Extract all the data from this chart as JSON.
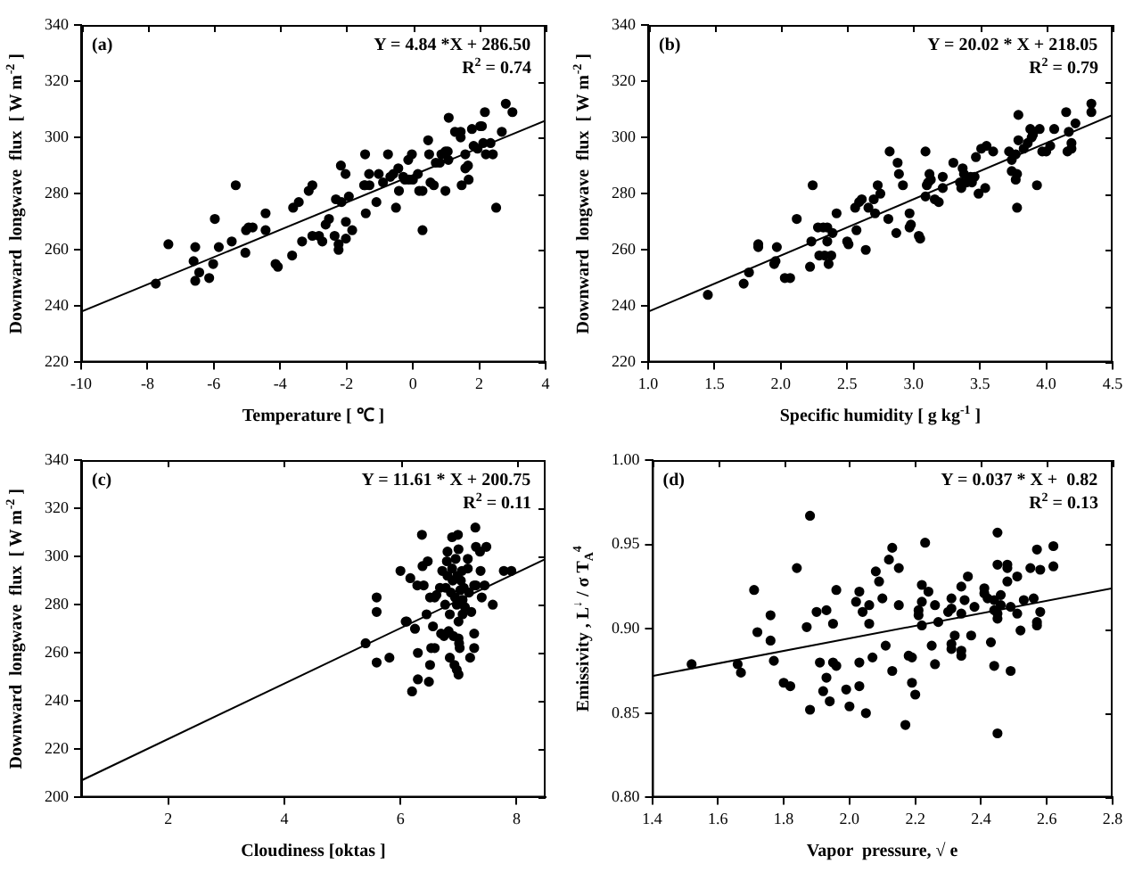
{
  "chart_data": [
    {
      "type": "scatter",
      "xlabel": "Temperature [ ℃ ]",
      "ylabel": "Downward  longwave  flux  [ W m$^{-2}$ ]",
      "xlim": [
        -10,
        4
      ],
      "xticks": [
        -10,
        -8,
        -6,
        -4,
        -2,
        0,
        2,
        4
      ],
      "ylim": [
        220,
        340
      ],
      "yticks": [
        220,
        240,
        260,
        280,
        300,
        320,
        340
      ],
      "marker": "circle",
      "annotations": [
        "(a)",
        "Y = 4.84 *X + 286.50",
        "R$^{2}$ = 0.74"
      ],
      "series": [
        {
          "color": "#000000",
          "x": [
            -7.75,
            -7.37,
            -6.61,
            -6.56,
            -6.56,
            -6.44,
            -6.14,
            -6.02,
            -5.97,
            -5.85,
            -5.46,
            -5.34,
            -5.05,
            -5.03,
            -4.95,
            -4.83,
            -4.44,
            -4.44,
            -4.14,
            -4.07,
            -3.64,
            -3.61,
            -3.44,
            -3.34,
            -3.14,
            -3.03,
            -3.03,
            -2.83,
            -2.73,
            -2.63,
            -2.53,
            -2.36,
            -2.32,
            -2.24,
            -2.24,
            -2.17,
            -2.15,
            -2.03,
            -2.02,
            -2.02,
            -1.93,
            -1.83,
            -1.44,
            -1.44,
            -1.42,
            -1.47,
            -1.32,
            -1.31,
            -1.1,
            -1.03,
            -0.9,
            -0.75,
            -0.68,
            -0.59,
            -0.51,
            -0.44,
            -0.42,
            -0.29,
            -0.24,
            -0.14,
            -0.12,
            -0.03,
            0,
            0.15,
            0.19,
            0.29,
            0.29,
            0.46,
            0.49,
            0.53,
            0.63,
            0.69,
            0.81,
            0.86,
            0.98,
            0.98,
            1.05,
            1.07,
            1.08,
            1.27,
            1.44,
            1.44,
            1.47,
            1.58,
            1.58,
            1.66,
            1.68,
            1.78,
            1.83,
            1.95,
            2.03,
            2.08,
            2.12,
            2.17,
            2.2,
            2.34,
            2.41,
            2.51,
            2.68,
            2.8,
            3.0
          ],
          "values": [
            248,
            262,
            256,
            261,
            249,
            252,
            250,
            255,
            271,
            261,
            263,
            283,
            259,
            267,
            268,
            268,
            273,
            267,
            255,
            254,
            258,
            275,
            277,
            263,
            281,
            283,
            265,
            265,
            263,
            269,
            271,
            265,
            278,
            262,
            260,
            290,
            277,
            287,
            270,
            264,
            279,
            267,
            294,
            283,
            273,
            283,
            287,
            283,
            277,
            287,
            284,
            294,
            286,
            287,
            275,
            289,
            281,
            286,
            285,
            292,
            285,
            294,
            285,
            287,
            281,
            281,
            267,
            299,
            294,
            284,
            283,
            291,
            291,
            294,
            281,
            295,
            295,
            292,
            307,
            302,
            300,
            302,
            283,
            294,
            289,
            290,
            285,
            303,
            297,
            296,
            304,
            304,
            298,
            309,
            294,
            298,
            294,
            275,
            302,
            312,
            309
          ]
        },
        {
          "type": "line",
          "color": "#000000",
          "x": [
            -10,
            4
          ],
          "values": [
            238,
            306
          ],
          "marker": "none"
        }
      ]
    },
    {
      "type": "scatter",
      "xlabel": "Specific humidity [ g kg$^{-1}$ ]",
      "ylabel": "Downward  longwave  flux  [ W m$^{-2}$ ]",
      "xlim": [
        1.0,
        4.5
      ],
      "xticks": [
        {
          "value": 1,
          "label": "1.0"
        },
        1.5,
        {
          "value": 2,
          "label": "2.0"
        },
        2.5,
        {
          "value": 3,
          "label": "3.0"
        },
        3.5,
        {
          "value": 4,
          "label": "4.0"
        },
        4.5
      ],
      "ylim": [
        220,
        340
      ],
      "yticks": [
        220,
        240,
        260,
        280,
        300,
        320,
        340
      ],
      "marker": "circle",
      "annotations": [
        "(b)",
        "Y = 20.02 * X + 218.05",
        "R$^{2}$ = 0.79"
      ],
      "series": [
        {
          "color": "#000000",
          "x": [
            1.45,
            1.72,
            1.76,
            1.83,
            1.83,
            1.95,
            1.96,
            1.97,
            2.03,
            2.07,
            2.12,
            2.22,
            2.23,
            2.24,
            2.28,
            2.29,
            2.32,
            2.33,
            2.35,
            2.35,
            2.36,
            2.38,
            2.39,
            2.42,
            2.5,
            2.51,
            2.56,
            2.57,
            2.59,
            2.61,
            2.64,
            2.66,
            2.7,
            2.71,
            2.73,
            2.75,
            2.82,
            2.81,
            2.87,
            2.88,
            2.89,
            2.92,
            2.97,
            2.97,
            2.98,
            3.04,
            3.05,
            3.09,
            3.09,
            3.1,
            3.11,
            3.12,
            3.13,
            3.16,
            3.19,
            3.22,
            3.22,
            3.3,
            3.35,
            3.36,
            3.37,
            3.38,
            3.4,
            3.43,
            3.44,
            3.46,
            3.47,
            3.49,
            3.51,
            3.54,
            3.55,
            3.6,
            3.72,
            3.74,
            3.74,
            3.77,
            3.77,
            3.78,
            3.78,
            3.79,
            3.79,
            3.83,
            3.86,
            3.88,
            3.89,
            3.9,
            3.93,
            3.95,
            3.97,
            4.0,
            4.03,
            4.06,
            4.15,
            4.16,
            4.17,
            4.19,
            4.19,
            4.22,
            4.34,
            4.34
          ],
          "values": [
            244,
            248,
            252,
            262,
            261,
            255,
            256,
            261,
            250,
            250,
            271,
            254,
            263,
            283,
            268,
            258,
            268,
            258,
            263,
            268,
            255,
            258,
            266,
            273,
            263,
            262,
            275,
            267,
            277,
            278,
            260,
            275,
            278,
            273,
            283,
            280,
            295,
            271,
            266,
            291,
            287,
            283,
            268,
            273,
            269,
            265,
            264,
            295,
            279,
            283,
            284,
            287,
            285,
            278,
            277,
            286,
            282,
            291,
            284,
            282,
            289,
            287,
            284,
            286,
            284,
            286,
            293,
            280,
            296,
            282,
            297,
            295,
            295,
            288,
            292,
            294,
            285,
            287,
            275,
            308,
            299,
            296,
            298,
            303,
            300,
            301,
            283,
            303,
            295,
            295,
            297,
            303,
            309,
            295,
            302,
            296,
            298,
            305,
            312,
            309
          ]
        },
        {
          "type": "line",
          "color": "#000000",
          "x": [
            1.0,
            4.5
          ],
          "values": [
            238,
            308
          ],
          "marker": "none"
        }
      ]
    },
    {
      "type": "scatter",
      "xlabel": "Cloudiness [oktas ]",
      "ylabel": "Downward  longwave  flux  [ W m$^{-2}$ ]",
      "xlim": [
        0.5,
        8.5
      ],
      "xticks": [
        2,
        4,
        6,
        8
      ],
      "ylim": [
        200,
        340
      ],
      "yticks": [
        200,
        220,
        240,
        260,
        280,
        300,
        320,
        340
      ],
      "marker": "circle",
      "annotations": [
        "(c)",
        "Y = 11.61 * X + 200.75",
        "R$^{2}$ = 0.11"
      ],
      "series": [
        {
          "color": "#000000",
          "x": [
            5.4,
            5.59,
            5.59,
            5.59,
            5.81,
            6.0,
            6.09,
            6.11,
            6.17,
            6.2,
            6.25,
            6.29,
            6.3,
            6.3,
            6.37,
            6.38,
            6.4,
            6.45,
            6.47,
            6.49,
            6.51,
            6.51,
            6.53,
            6.56,
            6.59,
            6.59,
            6.62,
            6.68,
            6.7,
            6.72,
            6.75,
            6.77,
            6.78,
            6.8,
            6.81,
            6.81,
            6.83,
            6.85,
            6.85,
            6.87,
            6.89,
            6.89,
            6.9,
            6.91,
            6.93,
            6.94,
            6.95,
            6.97,
            6.97,
            6.98,
            6.99,
            7.0,
            7.0,
            7.0,
            7.0,
            7.01,
            7.02,
            7.03,
            7.04,
            7.06,
            7.07,
            7.07,
            7.09,
            7.11,
            7.16,
            7.16,
            7.18,
            7.2,
            7.22,
            7.27,
            7.27,
            7.27,
            7.29,
            7.3,
            7.3,
            7.37,
            7.38,
            7.4,
            7.45,
            7.48,
            7.59,
            7.78,
            7.91
          ],
          "values": [
            264,
            283,
            277,
            256,
            258,
            294,
            273,
            273,
            291,
            244,
            270,
            288,
            260,
            249,
            309,
            296,
            288,
            276,
            298,
            248,
            283,
            255,
            262,
            271,
            262,
            283,
            284,
            287,
            268,
            294,
            267,
            280,
            287,
            298,
            292,
            302,
            269,
            276,
            258,
            285,
            295,
            308,
            290,
            267,
            255,
            283,
            299,
            280,
            253,
            292,
            309,
            303,
            273,
            266,
            251,
            264,
            262,
            286,
            290,
            294,
            276,
            282,
            287,
            279,
            295,
            299,
            285,
            258,
            277,
            288,
            268,
            262,
            312,
            304,
            288,
            302,
            294,
            283,
            288,
            304,
            280,
            294,
            294
          ]
        },
        {
          "type": "line",
          "color": "#000000",
          "x": [
            0.5,
            8.5
          ],
          "values": [
            207,
            299
          ],
          "marker": "none"
        }
      ]
    },
    {
      "type": "scatter",
      "xlabel": "Vapor  pressure, √ e",
      "ylabel": "Emissivity , L$^{↓}$ / σ T$_{A}$$^{4}$",
      "xlim": [
        1.4,
        2.8
      ],
      "xticks": [
        1.4,
        1.6,
        1.8,
        {
          "value": 2,
          "label": "2.0"
        },
        2.2,
        2.4,
        2.6,
        2.8
      ],
      "ylim": [
        0.8,
        1.0
      ],
      "yticks": [
        {
          "value": 0.8,
          "label": "0.80"
        },
        0.85,
        {
          "value": 0.9,
          "label": "0.90"
        },
        0.95,
        {
          "value": 1,
          "label": "1.00"
        }
      ],
      "marker": "circle",
      "annotations": [
        "(d)",
        "Y = 0.037 * X +  0.82",
        "R$^{2}$ = 0.13"
      ],
      "series": [
        {
          "color": "#000000",
          "x": [
            1.52,
            1.66,
            1.67,
            1.71,
            1.72,
            1.76,
            1.76,
            1.77,
            1.8,
            1.82,
            1.84,
            1.87,
            1.88,
            1.88,
            1.9,
            1.91,
            1.92,
            1.93,
            1.93,
            1.94,
            1.95,
            1.95,
            1.96,
            1.96,
            1.99,
            2.0,
            2.02,
            2.03,
            2.03,
            2.03,
            2.04,
            2.05,
            2.06,
            2.06,
            2.07,
            2.08,
            2.09,
            2.1,
            2.11,
            2.12,
            2.13,
            2.13,
            2.15,
            2.15,
            2.18,
            2.19,
            2.17,
            2.19,
            2.2,
            2.21,
            2.21,
            2.22,
            2.22,
            2.22,
            2.23,
            2.24,
            2.25,
            2.26,
            2.26,
            2.27,
            2.3,
            2.31,
            2.31,
            2.31,
            2.31,
            2.32,
            2.34,
            2.34,
            2.34,
            2.34,
            2.35,
            2.36,
            2.37,
            2.38,
            2.41,
            2.41,
            2.42,
            2.43,
            2.44,
            2.44,
            2.44,
            2.45,
            2.45,
            2.45,
            2.45,
            2.45,
            2.46,
            2.46,
            2.48,
            2.48,
            2.48,
            2.49,
            2.49,
            2.51,
            2.51,
            2.52,
            2.53,
            2.55,
            2.56,
            2.57,
            2.57,
            2.57,
            2.58,
            2.58,
            2.62,
            2.62
          ],
          "values": [
            0.879,
            0.879,
            0.874,
            0.923,
            0.898,
            0.908,
            0.893,
            0.881,
            0.868,
            0.866,
            0.936,
            0.901,
            0.852,
            0.967,
            0.91,
            0.88,
            0.863,
            0.911,
            0.871,
            0.857,
            0.903,
            0.88,
            0.878,
            0.923,
            0.864,
            0.854,
            0.916,
            0.866,
            0.88,
            0.922,
            0.91,
            0.85,
            0.914,
            0.903,
            0.883,
            0.934,
            0.928,
            0.918,
            0.89,
            0.941,
            0.875,
            0.948,
            0.936,
            0.914,
            0.884,
            0.883,
            0.843,
            0.868,
            0.861,
            0.911,
            0.908,
            0.916,
            0.926,
            0.902,
            0.951,
            0.922,
            0.89,
            0.879,
            0.914,
            0.904,
            0.91,
            0.912,
            0.891,
            0.888,
            0.918,
            0.896,
            0.925,
            0.909,
            0.884,
            0.887,
            0.917,
            0.931,
            0.896,
            0.913,
            0.921,
            0.924,
            0.918,
            0.892,
            0.917,
            0.878,
            0.911,
            0.909,
            0.906,
            0.957,
            0.838,
            0.938,
            0.92,
            0.914,
            0.928,
            0.936,
            0.938,
            0.913,
            0.875,
            0.931,
            0.909,
            0.899,
            0.917,
            0.936,
            0.918,
            0.947,
            0.904,
            0.902,
            0.935,
            0.91,
            0.937,
            0.949
          ]
        },
        {
          "type": "line",
          "color": "#000000",
          "x": [
            1.4,
            2.8
          ],
          "values": [
            0.872,
            0.924
          ],
          "marker": "none"
        }
      ]
    }
  ]
}
